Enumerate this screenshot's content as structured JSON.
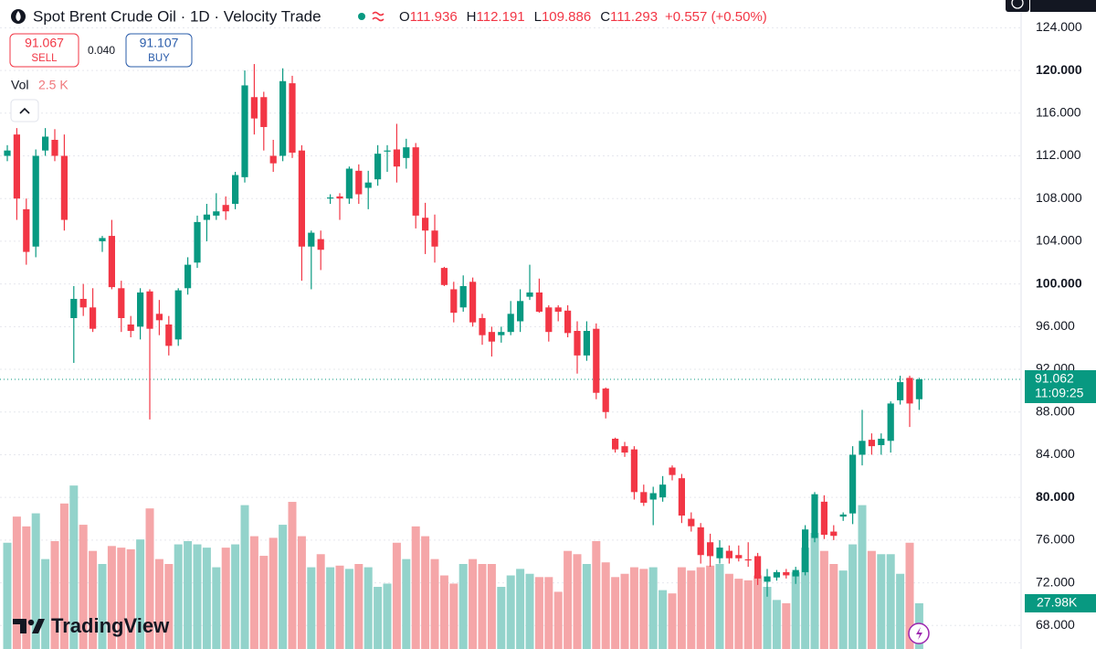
{
  "header": {
    "symbol": "Spot Brent Crude Oil · 1D · Velocity Trade",
    "ohlc": [
      {
        "label": "O",
        "value": 111.936
      },
      {
        "label": "H",
        "value": 112.191
      },
      {
        "label": "L",
        "value": 109.886
      },
      {
        "label": "C",
        "value": 111.293
      }
    ],
    "change": "+0.557 (+0.50%)",
    "sell": {
      "price": "91.067",
      "label": "SELL"
    },
    "spread": "0.040",
    "buy": {
      "price": "91.107",
      "label": "BUY"
    },
    "volume_label": "Vol",
    "volume_value": "2.5 K",
    "logo": "TradingView"
  },
  "chart_data": {
    "type": "candlestick",
    "up_color": "#089981",
    "down_color": "#f23645",
    "volume_up_color": "#93d3cb",
    "volume_down_color": "#f5a6a8",
    "ylim": [
      65.8,
      126.6
    ],
    "vol_ylim": [
      0,
      397
    ],
    "grid": true,
    "yticks": [
      {
        "value": 124,
        "label": "124.000"
      },
      {
        "value": 120,
        "label": "120.000",
        "bold": true
      },
      {
        "value": 116,
        "label": "116.000"
      },
      {
        "value": 112,
        "label": "112.000"
      },
      {
        "value": 108,
        "label": "108.000"
      },
      {
        "value": 104,
        "label": "104.000"
      },
      {
        "value": 100,
        "label": "100.000",
        "bold": true
      },
      {
        "value": 96,
        "label": "96.000"
      },
      {
        "value": 92,
        "label": "92.000"
      },
      {
        "value": 88,
        "label": "88.000"
      },
      {
        "value": 84,
        "label": "84.000"
      },
      {
        "value": 80,
        "label": "80.000",
        "bold": true
      },
      {
        "value": 76,
        "label": "76.000"
      },
      {
        "value": 72,
        "label": "72.000"
      },
      {
        "value": 68,
        "label": "68.000"
      }
    ],
    "last_price": 91.062,
    "last_time": "11:09:25",
    "last_volume_label": "27.98K",
    "open": [
      112,
      114,
      107,
      103.5,
      112.5,
      113.5,
      112,
      96.8,
      98.6,
      97.8,
      104,
      104.5,
      99.6,
      96.2,
      96,
      99.3,
      97.2,
      96.2,
      94.8,
      99.6,
      102,
      106,
      106.4,
      107.4,
      107.5,
      110,
      117.5,
      117.5,
      112,
      112,
      118.8,
      112.5,
      103.5,
      104.2,
      108,
      108.2,
      108,
      110.6,
      109,
      109.8,
      112.4,
      112.6,
      111.8,
      112.8,
      106.2,
      105,
      101.5,
      99.5,
      97.8,
      100.2,
      96.8,
      95.5,
      95.2,
      95.5,
      96.5,
      98.8,
      99.2,
      97.8,
      97.8,
      97.5,
      95.6,
      93.3,
      95.8,
      90.2,
      85.5,
      84.8,
      84.5,
      80.5,
      79.8,
      80,
      82.8,
      81.8,
      78,
      77.2,
      75.8,
      74.3,
      75,
      74.6,
      74.2,
      74.5,
      72.1,
      72.5,
      73.0,
      72.6,
      73,
      76.2,
      79.6,
      76.8,
      78.2,
      78.5,
      84,
      85.4,
      84.9,
      85.3,
      89.1,
      91.2,
      89.2
    ],
    "high": [
      113,
      114.6,
      108,
      112.6,
      114.6,
      114.5,
      114,
      99.8,
      100,
      99.6,
      104.5,
      106,
      100.3,
      97,
      99.6,
      99.5,
      98.5,
      97,
      99.6,
      102.5,
      106.4,
      107.5,
      108.5,
      108.2,
      110.5,
      120,
      120.6,
      118,
      113.5,
      120.2,
      119.5,
      113,
      105,
      105,
      108.4,
      108.5,
      111,
      111.2,
      110.6,
      113,
      113,
      115,
      113.6,
      113.2,
      107.6,
      106.5,
      101.6,
      100.2,
      100.8,
      100.6,
      97.2,
      96,
      96,
      98.4,
      99.5,
      101.8,
      100.5,
      98,
      98,
      98,
      96.5,
      96.5,
      96.3,
      90.3,
      85.6,
      85.2,
      84.8,
      81.2,
      81,
      82,
      83,
      82.2,
      78.6,
      77.6,
      76.6,
      76,
      75.5,
      75.5,
      75.8,
      74.8,
      73.3,
      73.2,
      73.3,
      73.5,
      77.4,
      80.5,
      80.2,
      77.4,
      78.6,
      84.8,
      88.2,
      86,
      86,
      89,
      91.4,
      91.4,
      91.2
    ],
    "low": [
      111.5,
      106,
      101.8,
      102.5,
      112,
      111.5,
      105,
      92.6,
      97,
      95.5,
      103,
      99.5,
      95.5,
      95,
      94.8,
      87.3,
      95.2,
      93.3,
      94.2,
      99,
      101.5,
      104,
      106,
      106,
      107,
      109.5,
      114,
      112.5,
      110.5,
      111.5,
      111.8,
      100.3,
      99.5,
      101.3,
      107.5,
      106,
      107.5,
      107.5,
      107,
      109.2,
      110.5,
      109.5,
      110.8,
      105.2,
      102.8,
      102,
      99.8,
      96.4,
      97.4,
      96,
      94.3,
      93.2,
      94.5,
      95.2,
      95.5,
      98.5,
      97.3,
      94.6,
      96.5,
      95,
      91.6,
      92.8,
      89.2,
      87.4,
      84.2,
      83.8,
      79.8,
      79.2,
      77.4,
      79.6,
      81.6,
      77.6,
      76.8,
      73.8,
      73.5,
      73.8,
      73.8,
      74,
      73.5,
      71.8,
      70.7,
      72.2,
      72.4,
      71.9,
      72.7,
      75.8,
      76.1,
      76,
      77.8,
      77.5,
      83,
      84,
      84,
      84.2,
      88.7,
      86.6,
      88.2
    ],
    "close": [
      112.5,
      108,
      103,
      112,
      113.8,
      112,
      106,
      98.6,
      97.8,
      95.8,
      104.3,
      99.7,
      96.8,
      95.6,
      99.2,
      95.8,
      96.6,
      94.2,
      99.4,
      101.8,
      105.8,
      106.5,
      106.8,
      106.8,
      110.2,
      118.6,
      115.5,
      114.7,
      111.3,
      119,
      112.3,
      103.5,
      104.8,
      103.2,
      108.1,
      108,
      110.8,
      108.4,
      109.5,
      112.2,
      112.5,
      111,
      112.8,
      106.4,
      105,
      103.5,
      99.9,
      97.3,
      99.8,
      96.4,
      95.2,
      94.6,
      95.5,
      97.2,
      98.4,
      99.2,
      97.4,
      95.5,
      97.4,
      95.4,
      93.3,
      95.6,
      89.8,
      88,
      84.5,
      84.2,
      80.5,
      79.5,
      80.4,
      81.2,
      82.1,
      78.3,
      77.3,
      74.6,
      74.5,
      75.3,
      74.3,
      74.3,
      74.1,
      72.4,
      72.6,
      73.0,
      72.7,
      73.2,
      77.0,
      80.3,
      76.5,
      76.4,
      78.4,
      84,
      85.3,
      84.8,
      85.5,
      88.8,
      90.8,
      88.8,
      91.062
    ],
    "volume": [
      65,
      81,
      75,
      83,
      55,
      66,
      89,
      100,
      76,
      60,
      52,
      63,
      62,
      61,
      67,
      86,
      55,
      52,
      64,
      66,
      64,
      62,
      50,
      62,
      64,
      88,
      69,
      57,
      68,
      76,
      90,
      69,
      50,
      58,
      50,
      51,
      49,
      52,
      50,
      38,
      40,
      65,
      55,
      75,
      69,
      55,
      45,
      40,
      52,
      55,
      52,
      52,
      38,
      45,
      49,
      46,
      44,
      44,
      35,
      60,
      58,
      52,
      66,
      53,
      44,
      46,
      50,
      49,
      50,
      36,
      34,
      50,
      48,
      50,
      51,
      52,
      46,
      43,
      42,
      45,
      38,
      30,
      28,
      47,
      62,
      71,
      60,
      52,
      48,
      64,
      88,
      60,
      58,
      58,
      46,
      65,
      27.98
    ]
  }
}
